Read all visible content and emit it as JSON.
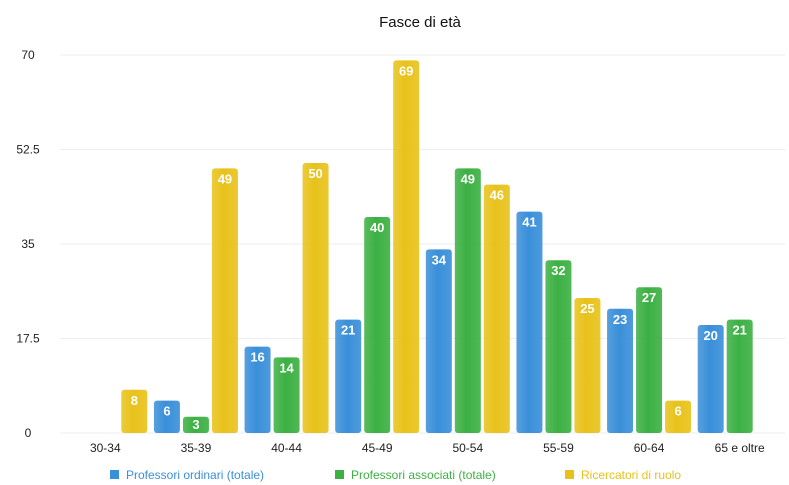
{
  "chart_data": {
    "type": "bar",
    "title": "Fasce di età",
    "xlabel": "",
    "ylabel": "",
    "categories": [
      "30-34",
      "35-39",
      "40-44",
      "45-49",
      "50-54",
      "55-59",
      "60-64",
      "65 e oltre"
    ],
    "ylim": [
      0,
      70
    ],
    "yticks": [
      "0",
      "17.5",
      "35",
      "52.5",
      "70"
    ],
    "grid": true,
    "legend_position": "bottom",
    "series": [
      {
        "name": "Professori ordinari (totale)",
        "color": "#3a8fd9",
        "values": [
          0,
          6,
          16,
          21,
          34,
          41,
          23,
          20
        ]
      },
      {
        "name": "Professori associati (totale)",
        "color": "#3cb043",
        "values": [
          0,
          3,
          14,
          40,
          49,
          32,
          27,
          21
        ]
      },
      {
        "name": "Ricercatori di ruolo",
        "color": "#e8c21a",
        "values": [
          8,
          49,
          50,
          69,
          46,
          25,
          6,
          0
        ]
      }
    ]
  }
}
